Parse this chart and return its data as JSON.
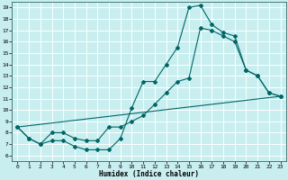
{
  "title": "",
  "xlabel": "Humidex (Indice chaleur)",
  "background_color": "#c8eef0",
  "grid_color": "#ffffff",
  "line_color": "#006666",
  "xlim": [
    -0.5,
    23.5
  ],
  "ylim": [
    5.5,
    19.5
  ],
  "xticks": [
    0,
    1,
    2,
    3,
    4,
    5,
    6,
    7,
    8,
    9,
    10,
    11,
    12,
    13,
    14,
    15,
    16,
    17,
    18,
    19,
    20,
    21,
    22,
    23
  ],
  "yticks": [
    6,
    7,
    8,
    9,
    10,
    11,
    12,
    13,
    14,
    15,
    16,
    17,
    18,
    19
  ],
  "curve1_x": [
    0,
    1,
    2,
    3,
    4,
    5,
    6,
    7,
    8,
    9,
    10,
    11,
    12,
    13,
    14,
    15,
    16,
    17,
    18,
    19,
    20,
    21,
    22,
    23
  ],
  "curve1_y": [
    8.5,
    7.5,
    7.0,
    7.3,
    7.3,
    6.8,
    6.5,
    6.5,
    6.5,
    7.5,
    10.2,
    12.5,
    12.5,
    14.0,
    15.5,
    19.0,
    19.2,
    17.5,
    16.8,
    16.5,
    13.5,
    13.0,
    11.5,
    11.2
  ],
  "curve2_x": [
    0,
    1,
    2,
    3,
    4,
    5,
    6,
    7,
    8,
    9,
    10,
    11,
    12,
    13,
    14,
    15,
    16,
    17,
    18,
    19,
    20,
    21,
    22,
    23
  ],
  "curve2_y": [
    8.5,
    7.5,
    7.0,
    8.0,
    8.0,
    7.5,
    7.3,
    7.3,
    8.5,
    8.5,
    9.0,
    9.5,
    10.5,
    11.5,
    12.5,
    12.8,
    17.2,
    17.0,
    16.5,
    16.0,
    13.5,
    13.0,
    11.5,
    11.2
  ],
  "curve3_x": [
    0,
    23
  ],
  "curve3_y": [
    8.5,
    11.2
  ]
}
